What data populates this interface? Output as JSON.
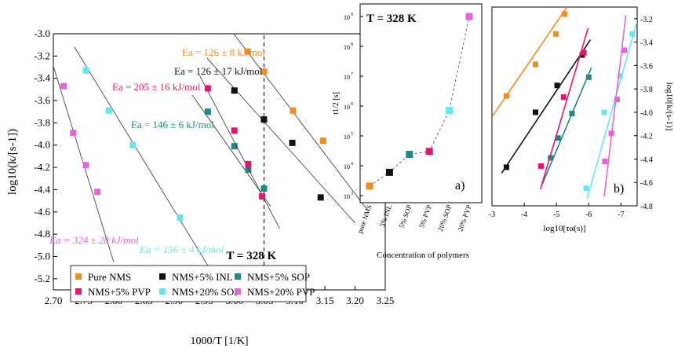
{
  "chart_data": [
    {
      "type": "scatter",
      "panel": "main",
      "xlabel": "1000/T [1/K]",
      "ylabel": "log10(k/[s-1])",
      "xlim": [
        2.7,
        3.25
      ],
      "ylim": [
        -5.3,
        -3.0
      ],
      "x_ticks": [
        "2.70",
        "2.75",
        "2.80",
        "2.85",
        "2.90",
        "2.95",
        "3.00",
        "3.05",
        "3.10",
        "3.15",
        "3.20",
        "3.25"
      ],
      "y_ticks": [
        "-3.0",
        "-3.2",
        "-3.4",
        "-3.6",
        "-3.8",
        "-4.0",
        "-4.2",
        "-4.4",
        "-4.6",
        "-4.8",
        "-5.0",
        "-5.2"
      ],
      "vline_label": "T = 328 K",
      "vline_x": 3.049,
      "legend_position": "bottom-left",
      "series": [
        {
          "name": "Pure NMS",
          "color": "#f28c1e",
          "points": [
            [
              3.022,
              -3.16
            ],
            [
              3.049,
              -3.34
            ],
            [
              3.097,
              -3.69
            ],
            [
              3.147,
              -3.96
            ]
          ],
          "fit": [
            [
              2.985,
              -2.9
            ],
            [
              3.22,
              -4.58
            ]
          ],
          "annotation": "Ea = 126 ± 8 kJ/mol"
        },
        {
          "name": "NMS+5% INL",
          "color": "#111111",
          "points": [
            [
              3.0,
              -3.51
            ],
            [
              3.049,
              -3.77
            ],
            [
              3.096,
              -3.98
            ],
            [
              3.143,
              -4.47
            ]
          ],
          "fit": [
            [
              2.955,
              -3.22
            ],
            [
              3.2,
              -4.7
            ]
          ],
          "annotation": "Ea = 126 ± 17 kJ/mol"
        },
        {
          "name": "NMS+5% SOP",
          "color": "#1a8a84",
          "points": [
            [
              2.956,
              -3.7
            ],
            [
              3.0,
              -4.01
            ],
            [
              3.023,
              -4.22
            ],
            [
              3.049,
              -4.39
            ]
          ],
          "fit": [
            [
              2.93,
              -3.55
            ],
            [
              3.06,
              -4.55
            ]
          ],
          "annotation": "Ea = 146 ± 6 kJ/mol"
        },
        {
          "name": "NMS+5% PVP",
          "color": "#e8156f",
          "points": [
            [
              2.956,
              -3.49
            ],
            [
              3.0,
              -3.87
            ],
            [
              3.023,
              -4.17
            ],
            [
              3.046,
              -4.46
            ]
          ],
          "fit": [
            [
              2.94,
              -3.35
            ],
            [
              3.075,
              -4.75
            ]
          ],
          "annotation": "Ea = 205 ± 16 kJ/mol"
        },
        {
          "name": "NMS+20% SOP",
          "color": "#63e8f0",
          "points": [
            [
              2.754,
              -3.33
            ],
            [
              2.792,
              -3.69
            ],
            [
              2.832,
              -4.0
            ],
            [
              2.91,
              -4.65
            ]
          ],
          "fit": [
            [
              2.735,
              -3.12
            ],
            [
              2.975,
              -5.25
            ]
          ],
          "annotation": "Ea = 156 ± 4 kJ/mol"
        },
        {
          "name": "NMS+20% PVP",
          "color": "#ea62d8",
          "points": [
            [
              2.717,
              -3.47
            ],
            [
              2.733,
              -3.89
            ],
            [
              2.754,
              -4.18
            ],
            [
              2.773,
              -4.42
            ]
          ],
          "fit": [
            [
              2.7,
              -3.29
            ],
            [
              2.8,
              -5.05
            ]
          ],
          "annotation": "Ea = 324 ± 28 kJ/mol"
        }
      ]
    },
    {
      "type": "scatter",
      "panel": "a)",
      "title": "T = 328 K",
      "xlabel": "Concentration of polymers",
      "ylabel": "t1/2 [s]",
      "y_scale": "log",
      "y_range_exp": [
        3,
        9
      ],
      "y_ticks": [
        "10",
        "10",
        "10",
        "10",
        "10",
        "10",
        "10"
      ],
      "y_tick_exponents": [
        "3",
        "4",
        "5",
        "6",
        "7",
        "8",
        "9"
      ],
      "categories": [
        "pure NMS",
        "5% INL",
        "5% SOP",
        "5% PVP",
        "20% SOP",
        "20% PVP"
      ],
      "values_log10": [
        3.32,
        3.78,
        4.38,
        4.48,
        5.85,
        9.0
      ],
      "colors": [
        "#f28c1e",
        "#111111",
        "#1a8a84",
        "#e8156f",
        "#63e8f0",
        "#ea62d8"
      ]
    },
    {
      "type": "scatter",
      "panel": "b)",
      "xlabel": "log10[τα(s)]",
      "ylabel": "log10[k/(s-1)]",
      "xlim": [
        -3,
        -7.5
      ],
      "ylim": [
        -4.8,
        -3.1
      ],
      "x_ticks": [
        "-3",
        "-4",
        "-5",
        "-6",
        "-7"
      ],
      "y_ticks": [
        "-3.2",
        "-3.4",
        "-3.6",
        "-3.8",
        "-4.0",
        "-4.2",
        "-4.4",
        "-4.6",
        "-4.8"
      ],
      "series": [
        {
          "name": "Pure NMS",
          "color": "#f28c1e",
          "points": [
            [
              -3.45,
              -3.86
            ],
            [
              -4.35,
              -3.59
            ],
            [
              -4.98,
              -3.33
            ],
            [
              -5.25,
              -3.16
            ]
          ],
          "fit": [
            [
              -3.0,
              -4.04
            ],
            [
              -5.45,
              -3.05
            ]
          ]
        },
        {
          "name": "NMS+5% INL",
          "color": "#111111",
          "points": [
            [
              -3.45,
              -4.47
            ],
            [
              -4.35,
              -4.0
            ],
            [
              -5.02,
              -3.77
            ],
            [
              -5.8,
              -3.51
            ]
          ],
          "fit": [
            [
              -3.3,
              -4.52
            ],
            [
              -6.05,
              -3.38
            ]
          ]
        },
        {
          "name": "NMS+5% SOP",
          "color": "#1a8a84",
          "points": [
            [
              -4.82,
              -4.39
            ],
            [
              -5.05,
              -4.22
            ],
            [
              -5.48,
              -4.01
            ],
            [
              -6.0,
              -3.7
            ]
          ],
          "fit": [
            [
              -4.55,
              -4.62
            ],
            [
              -6.08,
              -3.62
            ]
          ]
        },
        {
          "name": "NMS+5% PVP",
          "color": "#e8156f",
          "points": [
            [
              -4.52,
              -4.46
            ],
            [
              -5.22,
              -3.87
            ],
            [
              -5.85,
              -3.49
            ]
          ],
          "fit": [
            [
              -4.5,
              -4.66
            ],
            [
              -5.98,
              -3.28
            ]
          ]
        },
        {
          "name": "NMS+20% SOP",
          "color": "#63e8f0",
          "points": [
            [
              -5.92,
              -4.65
            ],
            [
              -6.48,
              -4.0
            ],
            [
              -6.98,
              -3.69
            ],
            [
              -7.35,
              -3.33
            ]
          ],
          "fit": [
            [
              -5.95,
              -4.74
            ],
            [
              -7.5,
              -3.22
            ]
          ]
        },
        {
          "name": "NMS+20% PVP",
          "color": "#ea62d8",
          "points": [
            [
              -6.5,
              -4.42
            ],
            [
              -6.7,
              -4.18
            ],
            [
              -6.88,
              -3.89
            ],
            [
              -7.1,
              -3.47
            ]
          ],
          "fit": [
            [
              -6.48,
              -4.72
            ],
            [
              -7.15,
              -3.17
            ]
          ]
        }
      ]
    }
  ]
}
